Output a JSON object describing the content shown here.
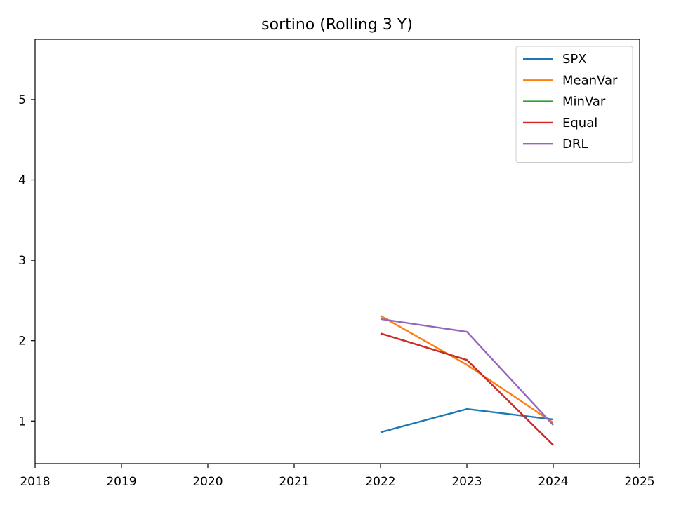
{
  "chart_data": {
    "type": "line",
    "title": "sortino (Rolling 3 Y)",
    "xlabel": "",
    "ylabel": "",
    "xlim": [
      2018,
      2025
    ],
    "ylim": [
      0.47,
      5.75
    ],
    "x_ticks": [
      "2018",
      "2019",
      "2020",
      "2021",
      "2022",
      "2023",
      "2024",
      "2025"
    ],
    "y_ticks": [
      "1",
      "2",
      "3",
      "4",
      "5"
    ],
    "grid": false,
    "legend_position": "top-right",
    "x": [
      2022,
      2023,
      2024
    ],
    "series": [
      {
        "name": "SPX",
        "color": "#1f77b4",
        "values": [
          0.86,
          1.15,
          1.02
        ]
      },
      {
        "name": "MeanVar",
        "color": "#ff7f0e",
        "values": [
          2.31,
          1.7,
          0.98
        ]
      },
      {
        "name": "MinVar",
        "color": "#2ca02c",
        "values": [
          2.09,
          1.76,
          0.7
        ]
      },
      {
        "name": "Equal",
        "color": "#d62728",
        "values": [
          2.09,
          1.76,
          0.7
        ]
      },
      {
        "name": "DRL",
        "color": "#9467bd",
        "values": [
          2.27,
          2.11,
          0.95
        ]
      }
    ]
  }
}
